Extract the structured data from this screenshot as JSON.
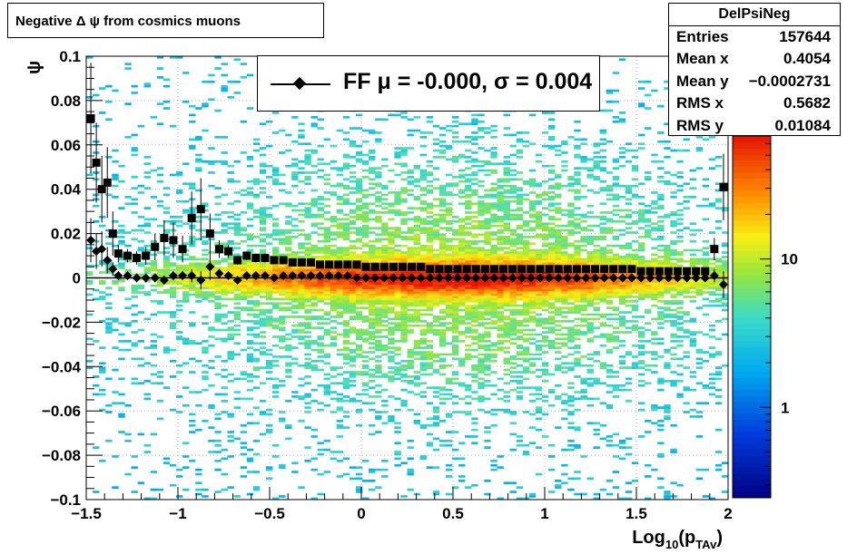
{
  "title": "Negative Δ ψ from cosmics muons",
  "stats": {
    "name": "DelPsiNeg",
    "rows": [
      {
        "label": "Entries",
        "value": "157644"
      },
      {
        "label": "Mean x",
        "value": "0.4054"
      },
      {
        "label": "Mean y",
        "value": "−0.0002731"
      },
      {
        "label": "RMS x",
        "value": "0.5682"
      },
      {
        "label": "RMS y",
        "value": "0.01084"
      }
    ]
  },
  "legend": {
    "text": "FF μ = -0.000, σ =   0.004"
  },
  "colors": {
    "profile_markers": "#000000",
    "frame": "#000000",
    "grid": "#b0b0b0"
  },
  "chart_data": {
    "type": "heatmap",
    "xlabel_main": "Log",
    "xlabel_sub1": "10",
    "xlabel_paren": "(p",
    "xlabel_sub2": "TAv",
    "xlabel_close": ")",
    "ylabel": "ψ",
    "xlim": [
      -1.5,
      2
    ],
    "ylim": [
      -0.1,
      0.1
    ],
    "x_ticks": [
      "−1.5",
      "−1",
      "−0.5",
      "0",
      "0.5",
      "1",
      "1.5",
      "2"
    ],
    "y_ticks": [
      "−0.1",
      "−0.08",
      "−0.06",
      "−0.04",
      "−0.02",
      "0",
      "0.02",
      "0.04",
      "0.06",
      "0.08",
      "0.1"
    ],
    "z_scale": "log",
    "z_ticks": [
      "1",
      "10"
    ],
    "grid": true,
    "density_model": {
      "center_x": 0.5,
      "width_x": 0.9,
      "core_sigma": 0.005,
      "halo_sigma": 0.035
    },
    "profile_series": [
      {
        "name": "mean",
        "marker": "square",
        "x": [
          -1.475,
          -1.445,
          -1.415,
          -1.385,
          -1.355,
          -1.325,
          -1.275,
          -1.225,
          -1.175,
          -1.125,
          -1.075,
          -1.025,
          -0.975,
          -0.925,
          -0.875,
          -0.825,
          -0.775,
          -0.725,
          -0.675,
          -0.625,
          -0.575,
          -0.525,
          -0.475,
          -0.425,
          -0.375,
          -0.325,
          -0.275,
          -0.225,
          -0.175,
          -0.125,
          -0.075,
          -0.025,
          0.025,
          0.075,
          0.125,
          0.175,
          0.225,
          0.275,
          0.325,
          0.375,
          0.425,
          0.475,
          0.525,
          0.575,
          0.625,
          0.675,
          0.725,
          0.775,
          0.825,
          0.875,
          0.925,
          0.975,
          1.025,
          1.075,
          1.125,
          1.175,
          1.225,
          1.275,
          1.325,
          1.375,
          1.425,
          1.475,
          1.525,
          1.575,
          1.625,
          1.675,
          1.725,
          1.775,
          1.825,
          1.875,
          1.925,
          1.975
        ],
        "y": [
          0.072,
          0.052,
          0.04,
          0.043,
          0.02,
          0.011,
          0.01,
          0.009,
          0.01,
          0.014,
          0.018,
          0.017,
          0.013,
          0.027,
          0.031,
          0.02,
          0.013,
          0.012,
          0.008,
          0.01,
          0.009,
          0.009,
          0.008,
          0.008,
          0.007,
          0.007,
          0.007,
          0.006,
          0.006,
          0.006,
          0.006,
          0.006,
          0.005,
          0.005,
          0.005,
          0.005,
          0.005,
          0.005,
          0.005,
          0.004,
          0.004,
          0.004,
          0.004,
          0.004,
          0.004,
          0.004,
          0.004,
          0.004,
          0.004,
          0.004,
          0.004,
          0.004,
          0.004,
          0.004,
          0.004,
          0.004,
          0.004,
          0.004,
          0.004,
          0.004,
          0.004,
          0.004,
          0.003,
          0.003,
          0.003,
          0.003,
          0.003,
          0.003,
          0.003,
          0.003,
          0.013,
          0.041
        ],
        "err": [
          0.025,
          0.018,
          0.015,
          0.016,
          0.01,
          0.004,
          0.003,
          0.003,
          0.004,
          0.006,
          0.008,
          0.008,
          0.006,
          0.012,
          0.014,
          0.009,
          0.004,
          0.003,
          0.002,
          0.002,
          0.002,
          0.002,
          0.001,
          0.001,
          0.001,
          0.001,
          0.001,
          0.001,
          0.001,
          0.001,
          0.001,
          0.001,
          0.001,
          0.001,
          0.001,
          0.001,
          0.001,
          0.001,
          0.001,
          0.001,
          0.001,
          0.001,
          0.001,
          0.001,
          0.001,
          0.001,
          0.001,
          0.001,
          0.001,
          0.001,
          0.001,
          0.001,
          0.001,
          0.001,
          0.001,
          0.001,
          0.001,
          0.001,
          0.001,
          0.001,
          0.001,
          0.001,
          0.001,
          0.001,
          0.001,
          0.001,
          0.001,
          0.001,
          0.001,
          0.001,
          0.005,
          0.015
        ]
      },
      {
        "name": "FF",
        "marker": "diamond",
        "x": [
          -1.475,
          -1.445,
          -1.415,
          -1.385,
          -1.355,
          -1.325,
          -1.275,
          -1.225,
          -1.175,
          -1.125,
          -1.075,
          -1.025,
          -0.975,
          -0.925,
          -0.875,
          -0.825,
          -0.775,
          -0.725,
          -0.675,
          -0.625,
          -0.575,
          -0.525,
          -0.475,
          -0.425,
          -0.375,
          -0.325,
          -0.275,
          -0.225,
          -0.175,
          -0.125,
          -0.075,
          -0.025,
          0.025,
          0.075,
          0.125,
          0.175,
          0.225,
          0.275,
          0.325,
          0.375,
          0.425,
          0.475,
          0.525,
          0.575,
          0.625,
          0.675,
          0.725,
          0.775,
          0.825,
          0.875,
          0.925,
          0.975,
          1.025,
          1.075,
          1.125,
          1.175,
          1.225,
          1.275,
          1.325,
          1.375,
          1.425,
          1.475,
          1.525,
          1.575,
          1.625,
          1.675,
          1.725,
          1.775,
          1.825,
          1.875,
          1.925,
          1.975
        ],
        "y": [
          0.017,
          0.012,
          0.013,
          0.008,
          0.004,
          0.001,
          0.001,
          0.0,
          0.0,
          0.0,
          -0.001,
          0.001,
          0.001,
          0.001,
          -0.001,
          0.005,
          0.002,
          0.001,
          -0.001,
          0.001,
          0.001,
          0.001,
          0.0,
          0.001,
          0.001,
          0.001,
          0.001,
          0.001,
          0.001,
          0.001,
          0.001,
          0.0,
          0.0,
          0.0,
          0.0,
          0.0,
          0.0,
          0.0,
          0.0,
          0.0,
          0.0,
          0.0,
          0.0,
          0.0,
          0.0,
          0.0,
          0.0,
          0.0,
          0.0,
          0.0,
          0.0,
          0.0,
          0.0,
          0.0,
          0.0,
          0.0,
          0.0,
          0.0,
          0.0,
          0.0,
          0.0,
          0.0,
          0.0,
          0.0,
          0.0,
          0.0,
          0.0,
          0.0,
          0.0,
          0.0,
          0.001,
          -0.003
        ],
        "err": [
          0.01,
          0.008,
          0.008,
          0.006,
          0.003,
          0.002,
          0.002,
          0.002,
          0.002,
          0.002,
          0.002,
          0.002,
          0.002,
          0.003,
          0.004,
          0.006,
          0.002,
          0.001,
          0.001,
          0.001,
          0.001,
          0.001,
          0.001,
          0.001,
          0.001,
          0.001,
          0.001,
          0.001,
          0.001,
          0.001,
          0.001,
          0.001,
          0.001,
          0.001,
          0.001,
          0.001,
          0.001,
          0.001,
          0.001,
          0.001,
          0.001,
          0.001,
          0.001,
          0.001,
          0.001,
          0.001,
          0.001,
          0.001,
          0.001,
          0.001,
          0.001,
          0.001,
          0.001,
          0.001,
          0.001,
          0.001,
          0.001,
          0.001,
          0.001,
          0.001,
          0.001,
          0.001,
          0.001,
          0.001,
          0.001,
          0.001,
          0.001,
          0.001,
          0.001,
          0.001,
          0.003,
          0.006
        ]
      }
    ]
  }
}
